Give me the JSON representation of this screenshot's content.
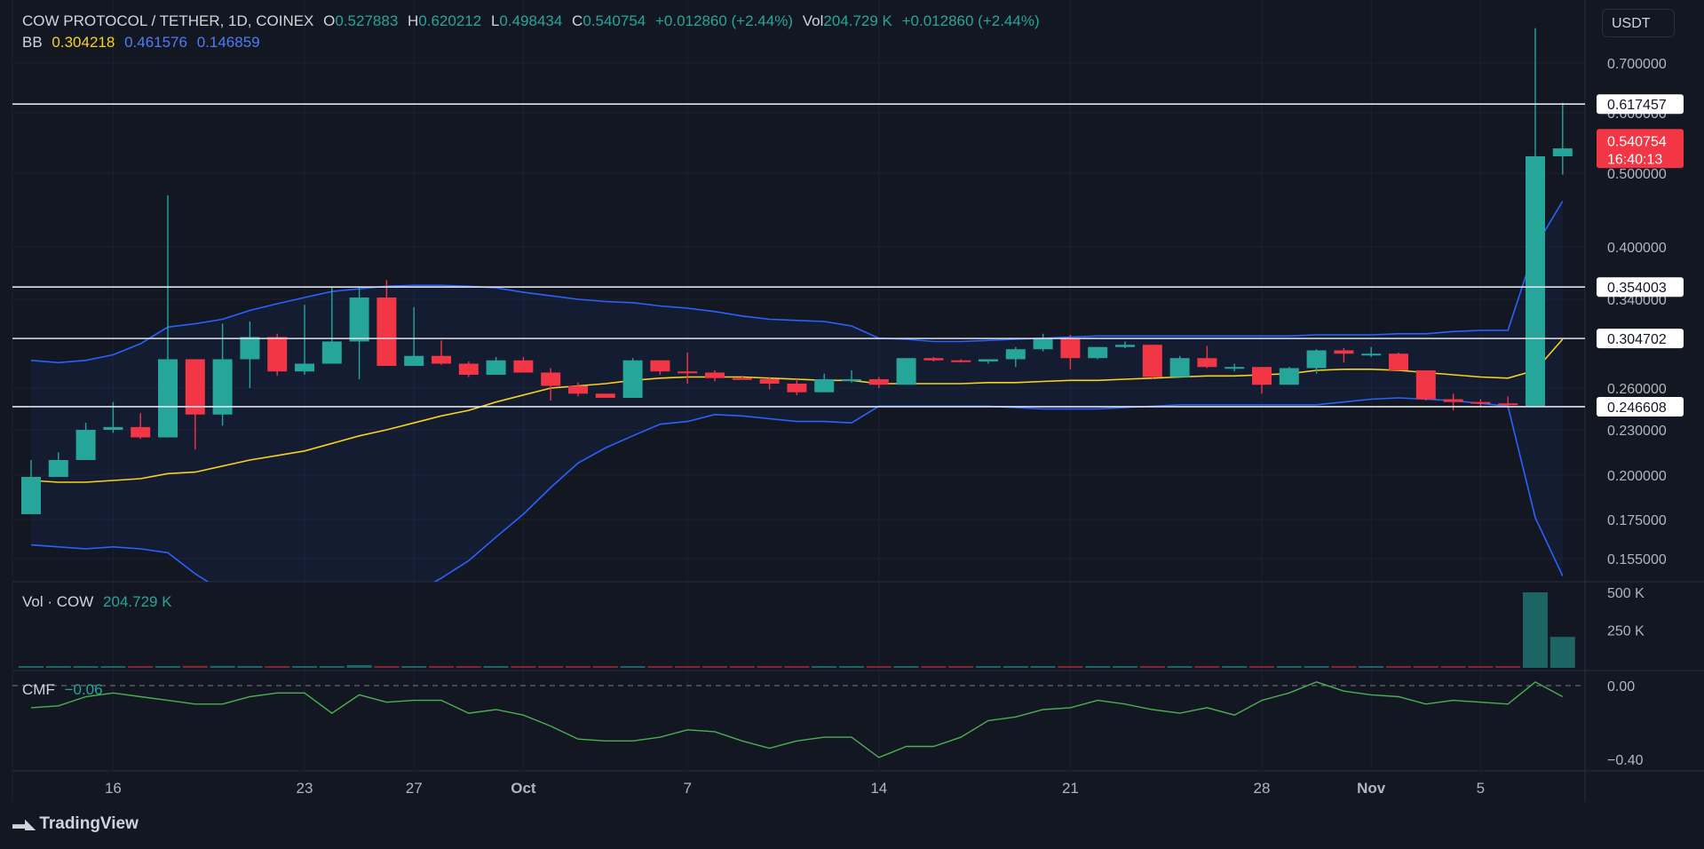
{
  "header": {
    "symbol": "COW PROTOCOL / TETHER, 1D, COINEX",
    "open_label": "O",
    "open": "0.527883",
    "high_label": "H",
    "high": "0.620212",
    "low_label": "L",
    "low": "0.498434",
    "close_label": "C",
    "close": "0.540754",
    "change": "+0.012860 (+2.44%)",
    "vol_label": "Vol",
    "vol": "204.729 K",
    "vol_change": "+0.012860 (+2.44%)",
    "bb_label": "BB",
    "bb_basis": "0.304218",
    "bb_upper": "0.461576",
    "bb_lower": "0.146859"
  },
  "currency_button": "USDT",
  "volume_pane": {
    "label": "Vol · COW",
    "value": "204.729 K"
  },
  "cmf_pane": {
    "label": "CMF",
    "value": "−0.06"
  },
  "branding": {
    "name": "TradingView"
  },
  "colors": {
    "up": "#26a69a",
    "down": "#f23645",
    "bb_band": "#2962ff",
    "bb_basis": "#f7d21e",
    "cmf": "#4caf50",
    "background": "#131722"
  },
  "chart_data": {
    "type": "candlestick",
    "title": "COW PROTOCOL / TETHER, 1D, COINEX",
    "price_ticks": [
      "0.700000",
      "0.600000",
      "0.500000",
      "0.400000",
      "0.340000",
      "0.260000",
      "0.230000",
      "0.200000",
      "0.175000",
      "0.155000"
    ],
    "price_tick_values": [
      0.7,
      0.6,
      0.5,
      0.4,
      0.34,
      0.26,
      0.23,
      0.2,
      0.175,
      0.155
    ],
    "horizontal_lines": [
      0.617457,
      0.354003,
      0.304702,
      0.246608
    ],
    "horizontal_line_labels": [
      "0.617457",
      "0.354003",
      "0.304702",
      "0.246608"
    ],
    "last_price_label": "0.540754",
    "countdown_label": "16:40:13",
    "x_tick_labels": [
      "16",
      "23",
      "27",
      "Oct",
      "7",
      "14",
      "21",
      "28",
      "Nov",
      "5"
    ],
    "x_tick_index": [
      3,
      10,
      14,
      18,
      24,
      31,
      38,
      45,
      49,
      53
    ],
    "candles": [
      {
        "o": 0.178,
        "h": 0.21,
        "l": 0.178,
        "c": 0.199
      },
      {
        "o": 0.199,
        "h": 0.215,
        "l": 0.199,
        "c": 0.21
      },
      {
        "o": 0.21,
        "h": 0.235,
        "l": 0.21,
        "c": 0.23
      },
      {
        "o": 0.23,
        "h": 0.25,
        "l": 0.228,
        "c": 0.232
      },
      {
        "o": 0.232,
        "h": 0.242,
        "l": 0.224,
        "c": 0.225
      },
      {
        "o": 0.225,
        "h": 0.47,
        "l": 0.225,
        "c": 0.286
      },
      {
        "o": 0.286,
        "h": 0.286,
        "l": 0.217,
        "c": 0.241
      },
      {
        "o": 0.241,
        "h": 0.318,
        "l": 0.233,
        "c": 0.286
      },
      {
        "o": 0.286,
        "h": 0.32,
        "l": 0.26,
        "c": 0.306
      },
      {
        "o": 0.306,
        "h": 0.309,
        "l": 0.271,
        "c": 0.275
      },
      {
        "o": 0.275,
        "h": 0.335,
        "l": 0.272,
        "c": 0.282
      },
      {
        "o": 0.282,
        "h": 0.355,
        "l": 0.282,
        "c": 0.302
      },
      {
        "o": 0.302,
        "h": 0.355,
        "l": 0.268,
        "c": 0.342
      },
      {
        "o": 0.342,
        "h": 0.362,
        "l": 0.281,
        "c": 0.28
      },
      {
        "o": 0.28,
        "h": 0.333,
        "l": 0.28,
        "c": 0.289
      },
      {
        "o": 0.289,
        "h": 0.303,
        "l": 0.281,
        "c": 0.282
      },
      {
        "o": 0.282,
        "h": 0.284,
        "l": 0.27,
        "c": 0.272
      },
      {
        "o": 0.272,
        "h": 0.288,
        "l": 0.272,
        "c": 0.285
      },
      {
        "o": 0.285,
        "h": 0.288,
        "l": 0.274,
        "c": 0.274
      },
      {
        "o": 0.274,
        "h": 0.278,
        "l": 0.251,
        "c": 0.262
      },
      {
        "o": 0.262,
        "h": 0.265,
        "l": 0.254,
        "c": 0.256
      },
      {
        "o": 0.256,
        "h": 0.256,
        "l": 0.253,
        "c": 0.253
      },
      {
        "o": 0.253,
        "h": 0.287,
        "l": 0.253,
        "c": 0.285
      },
      {
        "o": 0.285,
        "h": 0.285,
        "l": 0.272,
        "c": 0.275
      },
      {
        "o": 0.275,
        "h": 0.292,
        "l": 0.264,
        "c": 0.274
      },
      {
        "o": 0.274,
        "h": 0.276,
        "l": 0.266,
        "c": 0.269
      },
      {
        "o": 0.269,
        "h": 0.271,
        "l": 0.268,
        "c": 0.268
      },
      {
        "o": 0.268,
        "h": 0.27,
        "l": 0.259,
        "c": 0.264
      },
      {
        "o": 0.264,
        "h": 0.268,
        "l": 0.255,
        "c": 0.257
      },
      {
        "o": 0.257,
        "h": 0.273,
        "l": 0.257,
        "c": 0.268
      },
      {
        "o": 0.268,
        "h": 0.276,
        "l": 0.265,
        "c": 0.268
      },
      {
        "o": 0.268,
        "h": 0.27,
        "l": 0.26,
        "c": 0.263
      },
      {
        "o": 0.263,
        "h": 0.287,
        "l": 0.263,
        "c": 0.287
      },
      {
        "o": 0.287,
        "h": 0.288,
        "l": 0.284,
        "c": 0.285
      },
      {
        "o": 0.285,
        "h": 0.286,
        "l": 0.283,
        "c": 0.284
      },
      {
        "o": 0.284,
        "h": 0.286,
        "l": 0.282,
        "c": 0.286
      },
      {
        "o": 0.286,
        "h": 0.297,
        "l": 0.279,
        "c": 0.295
      },
      {
        "o": 0.295,
        "h": 0.309,
        "l": 0.293,
        "c": 0.305
      },
      {
        "o": 0.305,
        "h": 0.308,
        "l": 0.277,
        "c": 0.287
      },
      {
        "o": 0.287,
        "h": 0.297,
        "l": 0.286,
        "c": 0.297
      },
      {
        "o": 0.297,
        "h": 0.302,
        "l": 0.296,
        "c": 0.299
      },
      {
        "o": 0.299,
        "h": 0.299,
        "l": 0.268,
        "c": 0.27
      },
      {
        "o": 0.27,
        "h": 0.289,
        "l": 0.27,
        "c": 0.287
      },
      {
        "o": 0.287,
        "h": 0.298,
        "l": 0.278,
        "c": 0.279
      },
      {
        "o": 0.279,
        "h": 0.282,
        "l": 0.275,
        "c": 0.279
      },
      {
        "o": 0.279,
        "h": 0.279,
        "l": 0.256,
        "c": 0.263
      },
      {
        "o": 0.263,
        "h": 0.279,
        "l": 0.263,
        "c": 0.278
      },
      {
        "o": 0.278,
        "h": 0.295,
        "l": 0.273,
        "c": 0.294
      },
      {
        "o": 0.294,
        "h": 0.296,
        "l": 0.283,
        "c": 0.291
      },
      {
        "o": 0.291,
        "h": 0.297,
        "l": 0.288,
        "c": 0.291
      },
      {
        "o": 0.291,
        "h": 0.292,
        "l": 0.276,
        "c": 0.276
      },
      {
        "o": 0.276,
        "h": 0.276,
        "l": 0.251,
        "c": 0.252
      },
      {
        "o": 0.252,
        "h": 0.256,
        "l": 0.244,
        "c": 0.25
      },
      {
        "o": 0.25,
        "h": 0.252,
        "l": 0.247,
        "c": 0.249
      },
      {
        "o": 0.249,
        "h": 0.254,
        "l": 0.246,
        "c": 0.248
      },
      {
        "o": 0.247,
        "h": 0.77,
        "l": 0.247,
        "c": 0.528
      },
      {
        "o": 0.528,
        "h": 0.62,
        "l": 0.498,
        "c": 0.541
      }
    ],
    "bb_upper": [
      0.285,
      0.283,
      0.285,
      0.29,
      0.3,
      0.315,
      0.318,
      0.322,
      0.33,
      0.336,
      0.342,
      0.349,
      0.352,
      0.355,
      0.356,
      0.356,
      0.355,
      0.353,
      0.348,
      0.344,
      0.34,
      0.338,
      0.337,
      0.334,
      0.332,
      0.329,
      0.325,
      0.322,
      0.321,
      0.32,
      0.316,
      0.305,
      0.304,
      0.302,
      0.302,
      0.303,
      0.304,
      0.305,
      0.306,
      0.307,
      0.307,
      0.307,
      0.307,
      0.307,
      0.307,
      0.307,
      0.307,
      0.308,
      0.308,
      0.308,
      0.309,
      0.309,
      0.311,
      0.312,
      0.312,
      0.4,
      0.462
    ],
    "bb_basis": [
      0.197,
      0.196,
      0.196,
      0.197,
      0.198,
      0.201,
      0.202,
      0.206,
      0.21,
      0.213,
      0.216,
      0.221,
      0.226,
      0.23,
      0.235,
      0.24,
      0.244,
      0.25,
      0.255,
      0.26,
      0.262,
      0.264,
      0.267,
      0.269,
      0.27,
      0.27,
      0.27,
      0.269,
      0.268,
      0.267,
      0.267,
      0.264,
      0.264,
      0.264,
      0.264,
      0.265,
      0.265,
      0.266,
      0.267,
      0.267,
      0.268,
      0.269,
      0.27,
      0.271,
      0.271,
      0.272,
      0.273,
      0.276,
      0.277,
      0.277,
      0.276,
      0.274,
      0.272,
      0.27,
      0.269,
      0.276,
      0.304
    ],
    "bb_lower": [
      0.162,
      0.161,
      0.16,
      0.161,
      0.16,
      0.158,
      0.148,
      0.14,
      0.136,
      0.135,
      0.135,
      0.138,
      0.138,
      0.138,
      0.139,
      0.146,
      0.154,
      0.166,
      0.178,
      0.193,
      0.208,
      0.218,
      0.226,
      0.234,
      0.236,
      0.241,
      0.24,
      0.238,
      0.236,
      0.236,
      0.235,
      0.247,
      0.247,
      0.247,
      0.247,
      0.247,
      0.246,
      0.245,
      0.245,
      0.245,
      0.246,
      0.247,
      0.248,
      0.248,
      0.248,
      0.248,
      0.248,
      0.248,
      0.25,
      0.252,
      0.253,
      0.252,
      0.251,
      0.249,
      0.247,
      0.176,
      0.147
    ],
    "volume": {
      "ticks": [
        "500 K",
        "250 K"
      ],
      "tick_values": [
        500,
        250
      ],
      "values": [
        8,
        8,
        8,
        8,
        9,
        11,
        13,
        13,
        12,
        9,
        9,
        11,
        18,
        11,
        9,
        8,
        8,
        7,
        7,
        7,
        7,
        6,
        6,
        6,
        6,
        6,
        6,
        6,
        6,
        6,
        6,
        6,
        6,
        6,
        6,
        6,
        7,
        7,
        6,
        6,
        6,
        6,
        6,
        6,
        6,
        7,
        7,
        7,
        7,
        7,
        7,
        8,
        8,
        8,
        9,
        500,
        205
      ],
      "unit": "K"
    },
    "cmf": {
      "ticks": [
        "0.00",
        "−0.40"
      ],
      "tick_values": [
        0.0,
        -0.4
      ],
      "values": [
        -0.12,
        -0.11,
        -0.06,
        -0.04,
        -0.06,
        -0.08,
        -0.1,
        -0.1,
        -0.06,
        -0.04,
        -0.04,
        -0.15,
        -0.05,
        -0.09,
        -0.08,
        -0.08,
        -0.15,
        -0.13,
        -0.16,
        -0.22,
        -0.29,
        -0.3,
        -0.3,
        -0.28,
        -0.24,
        -0.25,
        -0.3,
        -0.34,
        -0.3,
        -0.28,
        -0.28,
        -0.39,
        -0.33,
        -0.33,
        -0.28,
        -0.19,
        -0.17,
        -0.13,
        -0.12,
        -0.08,
        -0.1,
        -0.13,
        -0.15,
        -0.12,
        -0.16,
        -0.08,
        -0.04,
        0.02,
        -0.03,
        -0.05,
        -0.06,
        -0.1,
        -0.08,
        -0.09,
        -0.1,
        0.02,
        -0.06
      ]
    }
  }
}
